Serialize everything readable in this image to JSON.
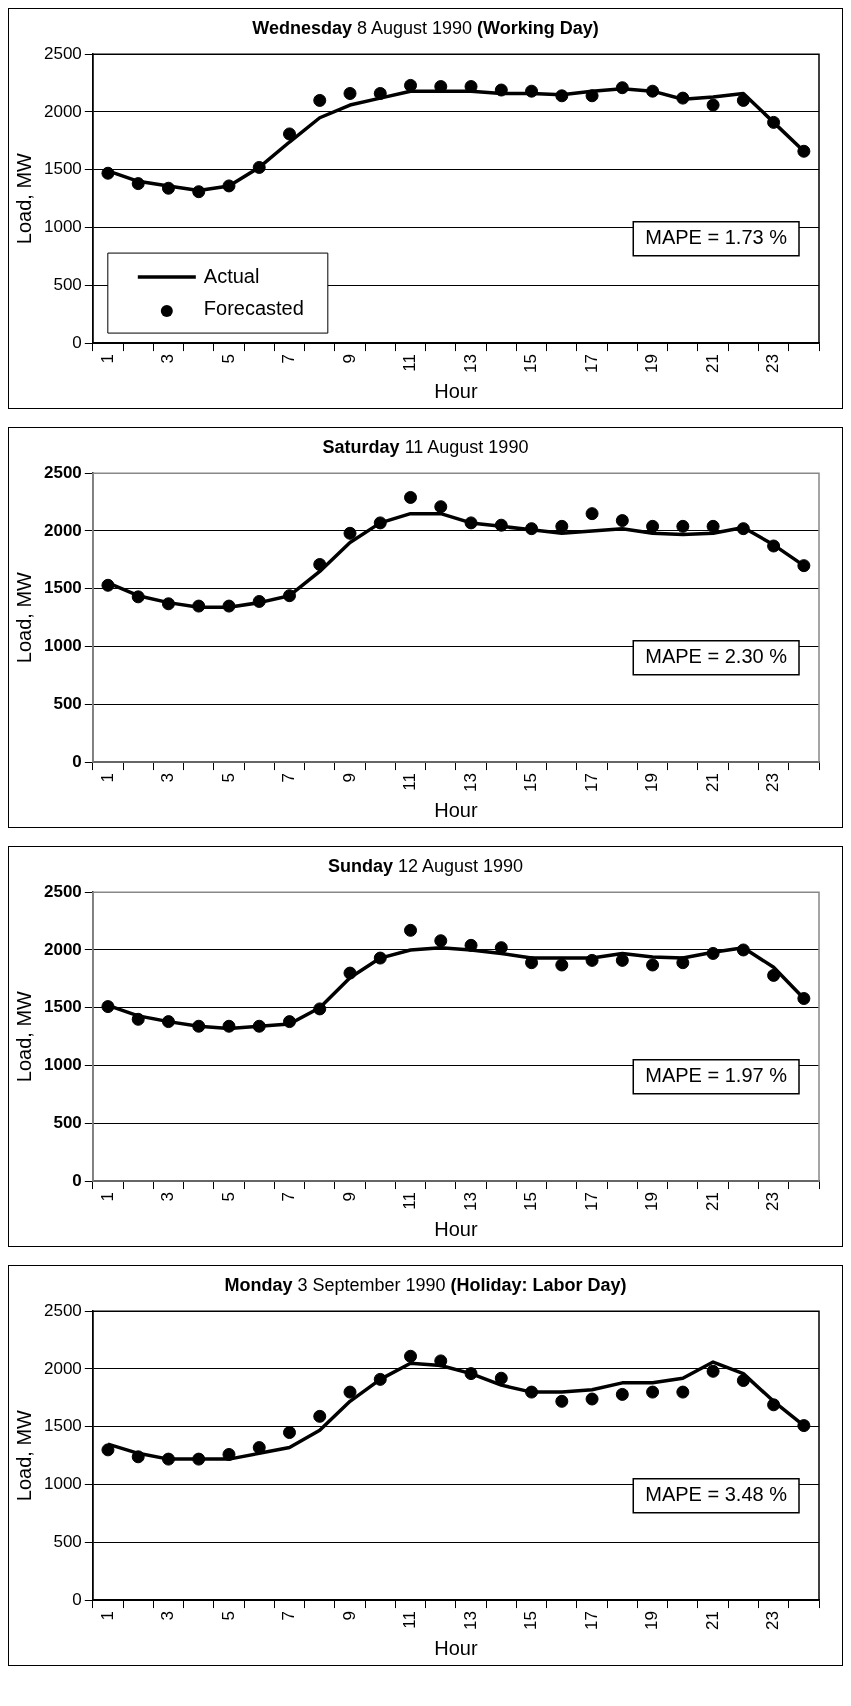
{
  "chart_data": [
    {
      "type": "line",
      "title": "Wednesday 8 August 1990 (Working Day)",
      "xlabel": "Hour",
      "ylabel": "Load, MW",
      "categories": [
        "1",
        null,
        "3",
        null,
        "5",
        null,
        "7",
        null,
        "9",
        null,
        "11",
        null,
        "13",
        null,
        "15",
        null,
        "17",
        null,
        "19",
        null,
        "21",
        null,
        "23",
        null
      ],
      "ylim": [
        0,
        2500
      ],
      "yticks": [
        0,
        500,
        1000,
        1500,
        2000,
        2500
      ],
      "grid": "y",
      "legend": "bottom left",
      "annotations": [
        "MAPE = 1.73 %"
      ],
      "series": [
        {
          "name": "Actual",
          "type": "line",
          "marker": "none",
          "color": "#000000",
          "values": [
            1490,
            1400,
            1360,
            1320,
            1360,
            1520,
            1740,
            1950,
            2060,
            2120,
            2180,
            2180,
            2180,
            2160,
            2160,
            2150,
            2180,
            2200,
            2180,
            2110,
            2130,
            2160,
            1910,
            1660
          ]
        },
        {
          "name": "Forecasted",
          "type": "scatter",
          "marker": "circle",
          "color": "#000000",
          "values": [
            1470,
            1380,
            1340,
            1310,
            1360,
            1520,
            1810,
            2100,
            2160,
            2160,
            2230,
            2220,
            2220,
            2190,
            2180,
            2140,
            2140,
            2210,
            2180,
            2120,
            2060,
            2100,
            1910,
            1660
          ]
        }
      ]
    },
    {
      "type": "line",
      "title": "Saturday 11 August 1990",
      "xlabel": "Hour",
      "ylabel": "Load, MW",
      "categories": [
        "1",
        null,
        "3",
        null,
        "5",
        null,
        "7",
        null,
        "9",
        null,
        "11",
        null,
        "13",
        null,
        "15",
        null,
        "17",
        null,
        "19",
        null,
        "21",
        null,
        "23",
        null
      ],
      "ylim": [
        0,
        2500
      ],
      "yticks": [
        0,
        500,
        1000,
        1500,
        2000,
        2500
      ],
      "grid": "y",
      "annotations": [
        "MAPE = 2.30 %"
      ],
      "series": [
        {
          "type": "line",
          "marker": "none",
          "color": "#000000",
          "values": [
            1550,
            1440,
            1380,
            1340,
            1340,
            1380,
            1440,
            1650,
            1900,
            2070,
            2150,
            2150,
            2070,
            2040,
            2010,
            1980,
            2000,
            2020,
            1980,
            1970,
            1980,
            2030,
            1880,
            1700
          ]
        },
        {
          "type": "scatter",
          "marker": "circle",
          "color": "#000000",
          "values": [
            1530,
            1430,
            1370,
            1350,
            1350,
            1390,
            1440,
            1710,
            1980,
            2070,
            2290,
            2210,
            2070,
            2050,
            2020,
            2040,
            2150,
            2090,
            2040,
            2040,
            2040,
            2020,
            1870,
            1700
          ]
        }
      ]
    },
    {
      "type": "line",
      "title": "Sunday 12 August 1990",
      "xlabel": "Hour",
      "ylabel": "Load, MW",
      "categories": [
        "1",
        null,
        "3",
        null,
        "5",
        null,
        "7",
        null,
        "9",
        null,
        "11",
        null,
        "13",
        null,
        "15",
        null,
        "17",
        null,
        "19",
        null,
        "21",
        null,
        "23",
        null
      ],
      "ylim": [
        0,
        2500
      ],
      "yticks": [
        0,
        500,
        1000,
        1500,
        2000,
        2500
      ],
      "grid": "y",
      "annotations": [
        "MAPE = 1.97 %"
      ],
      "series": [
        {
          "type": "line",
          "marker": "none",
          "color": "#000000",
          "values": [
            1520,
            1430,
            1380,
            1340,
            1320,
            1340,
            1360,
            1500,
            1760,
            1930,
            2000,
            2020,
            2000,
            1970,
            1930,
            1930,
            1930,
            1970,
            1940,
            1930,
            1980,
            2020,
            1850,
            1580
          ]
        },
        {
          "type": "scatter",
          "marker": "circle",
          "color": "#000000",
          "values": [
            1510,
            1400,
            1380,
            1340,
            1340,
            1340,
            1380,
            1490,
            1800,
            1930,
            2170,
            2080,
            2040,
            2020,
            1890,
            1870,
            1910,
            1910,
            1870,
            1890,
            1970,
            2000,
            1780,
            1580
          ]
        }
      ]
    },
    {
      "type": "line",
      "title": "Monday 3 September 1990 (Holiday: Labor Day)",
      "xlabel": "Hour",
      "ylabel": "Load, MW",
      "categories": [
        "1",
        null,
        "3",
        null,
        "5",
        null,
        "7",
        null,
        "9",
        null,
        "11",
        null,
        "13",
        null,
        "15",
        null,
        "17",
        null,
        "19",
        null,
        "21",
        null,
        "23",
        null
      ],
      "ylim": [
        0,
        2500
      ],
      "yticks": [
        0,
        500,
        1000,
        1500,
        2000,
        2500
      ],
      "grid": "y",
      "annotations": [
        "MAPE = 3.48 %"
      ],
      "series": [
        {
          "type": "line",
          "marker": "none",
          "color": "#000000",
          "values": [
            1350,
            1270,
            1220,
            1220,
            1220,
            1270,
            1320,
            1470,
            1720,
            1910,
            2050,
            2030,
            1960,
            1860,
            1800,
            1800,
            1820,
            1880,
            1880,
            1920,
            2060,
            1960,
            1720,
            1510
          ]
        },
        {
          "type": "scatter",
          "marker": "circle",
          "color": "#000000",
          "values": [
            1300,
            1240,
            1220,
            1220,
            1260,
            1320,
            1450,
            1590,
            1800,
            1910,
            2110,
            2070,
            1960,
            1920,
            1800,
            1720,
            1740,
            1780,
            1800,
            1800,
            1980,
            1900,
            1690,
            1510
          ]
        }
      ]
    }
  ]
}
